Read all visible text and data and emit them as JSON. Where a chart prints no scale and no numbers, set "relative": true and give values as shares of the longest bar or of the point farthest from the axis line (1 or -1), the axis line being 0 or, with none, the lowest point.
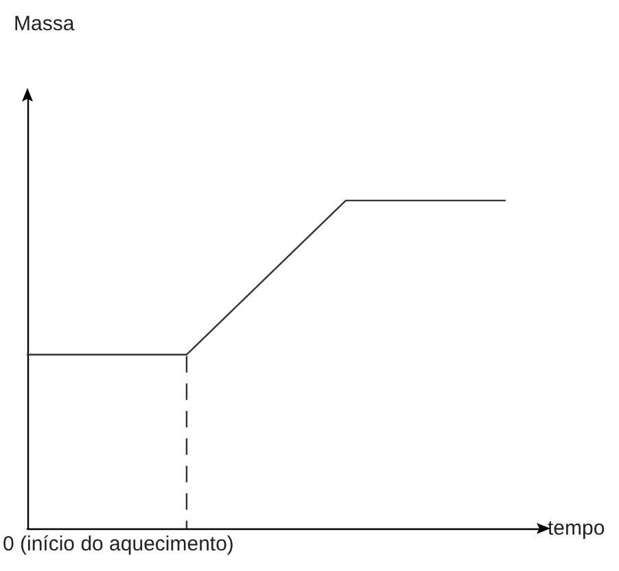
{
  "chart_data": {
    "type": "line",
    "xlabel": "tempo",
    "relative": true,
    "categories": [
      null,
      null,
      null,
      null
    ],
    "annotations": [
      "Massa",
      "0 (início do aquecimento)"
    ],
    "series": [
      {
        "color": "#333333",
        "values": [
          0.53,
          0.53,
          1,
          1
        ]
      }
    ],
    "marker": "none",
    "line_style": "solid"
  }
}
